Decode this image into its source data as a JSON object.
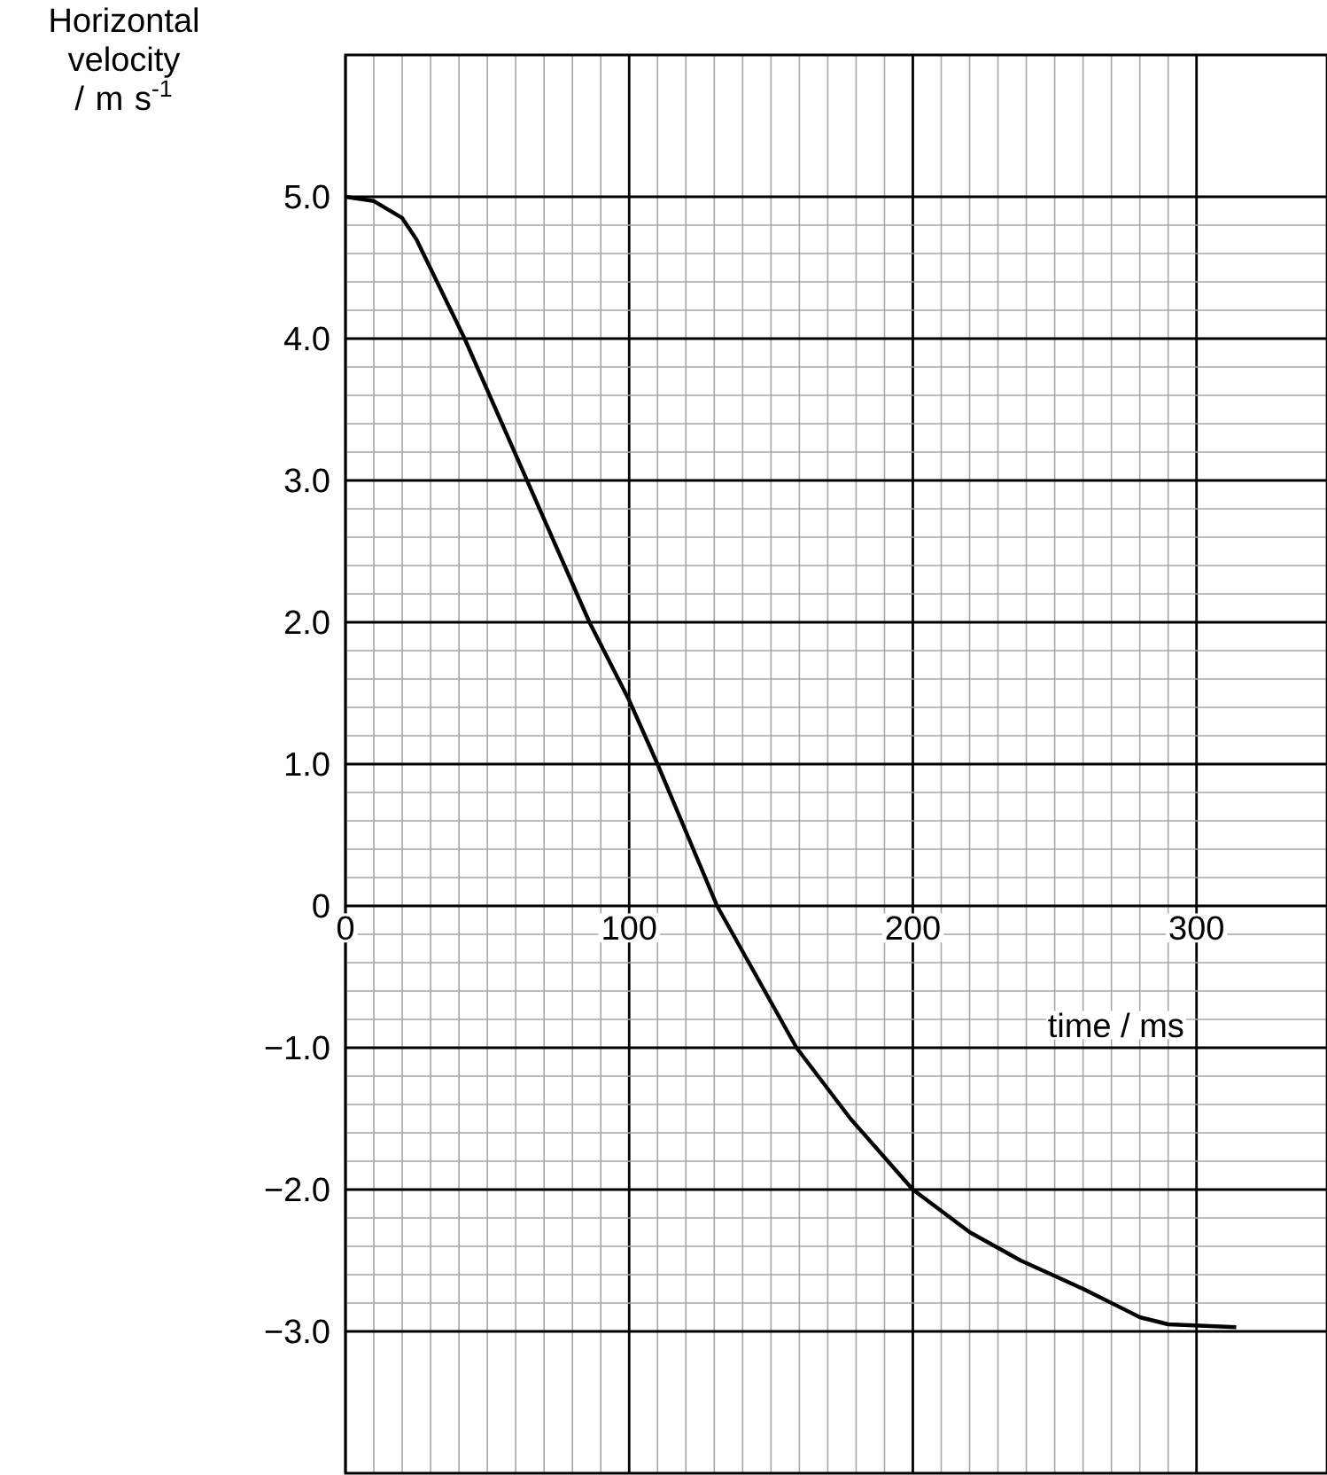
{
  "chart_data": {
    "type": "line",
    "xlabel": "time / ms",
    "ylabel": "Horizontal velocity / m s$^{-1}$",
    "xlim": [
      0,
      346
    ],
    "ylim": [
      -4,
      6
    ],
    "xticks": [
      0,
      100,
      200,
      300
    ],
    "yticks": [
      {
        "value": -3,
        "label": "−3.0"
      },
      {
        "value": -2,
        "label": "−2.0"
      },
      {
        "value": -1,
        "label": "−1.0"
      },
      0,
      {
        "value": 1,
        "label": "1.0"
      },
      {
        "value": 2,
        "label": "2.0"
      },
      {
        "value": 3,
        "label": "3.0"
      },
      {
        "value": 4,
        "label": "4.0"
      },
      {
        "value": 5,
        "label": "5.0"
      }
    ],
    "grid": true,
    "line_style": "solid",
    "marker": "none",
    "series": [
      {
        "color": "#000000",
        "x": [
          0,
          10,
          20,
          25,
          42,
          64,
          86,
          100,
          110,
          131,
          159,
          178,
          200,
          220,
          238,
          260,
          280,
          290,
          314
        ],
        "values": [
          5.0,
          4.97,
          4.85,
          4.7,
          4.0,
          3.0,
          2.0,
          1.45,
          1.0,
          0,
          -1.0,
          -1.5,
          -2.0,
          -2.3,
          -2.5,
          -2.7,
          -2.9,
          -2.95,
          -2.97
        ]
      }
    ]
  }
}
